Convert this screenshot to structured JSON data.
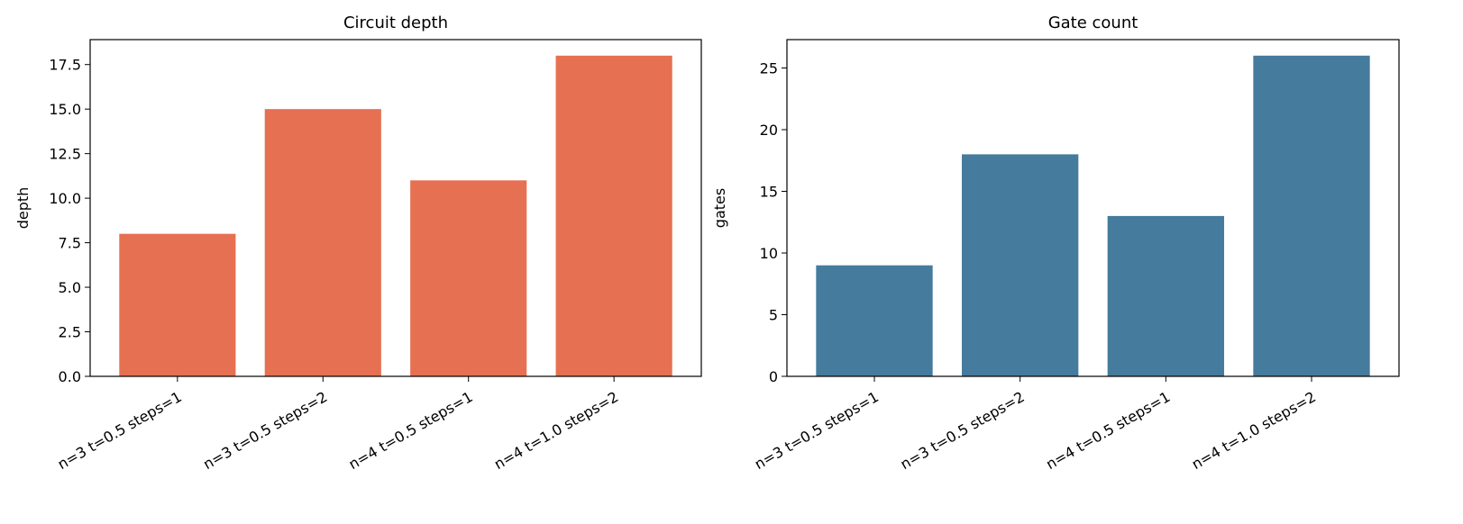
{
  "chart_data": [
    {
      "type": "bar",
      "title": "Circuit depth",
      "ylabel": "depth",
      "categories": [
        "n=3 t=0.5 steps=1",
        "n=3 t=0.5 steps=2",
        "n=4 t=0.5 steps=1",
        "n=4 t=1.0 steps=2"
      ],
      "values": [
        8,
        15,
        11,
        18
      ],
      "color": "#e67052",
      "ylim": [
        0,
        18.9
      ],
      "yticks": [
        {
          "value": 0,
          "label": "0.0"
        },
        2.5,
        {
          "value": 5,
          "label": "5.0"
        },
        7.5,
        {
          "value": 10,
          "label": "10.0"
        },
        12.5,
        {
          "value": 15,
          "label": "15.0"
        },
        17.5
      ]
    },
    {
      "type": "bar",
      "title": "Gate count",
      "ylabel": "gates",
      "categories": [
        "n=3 t=0.5 steps=1",
        "n=3 t=0.5 steps=2",
        "n=4 t=0.5 steps=1",
        "n=4 t=1.0 steps=2"
      ],
      "values": [
        9,
        18,
        13,
        26
      ],
      "color": "#457b9d",
      "ylim": [
        0,
        27.3
      ],
      "yticks": [
        0,
        5,
        10,
        15,
        20,
        25
      ]
    }
  ]
}
